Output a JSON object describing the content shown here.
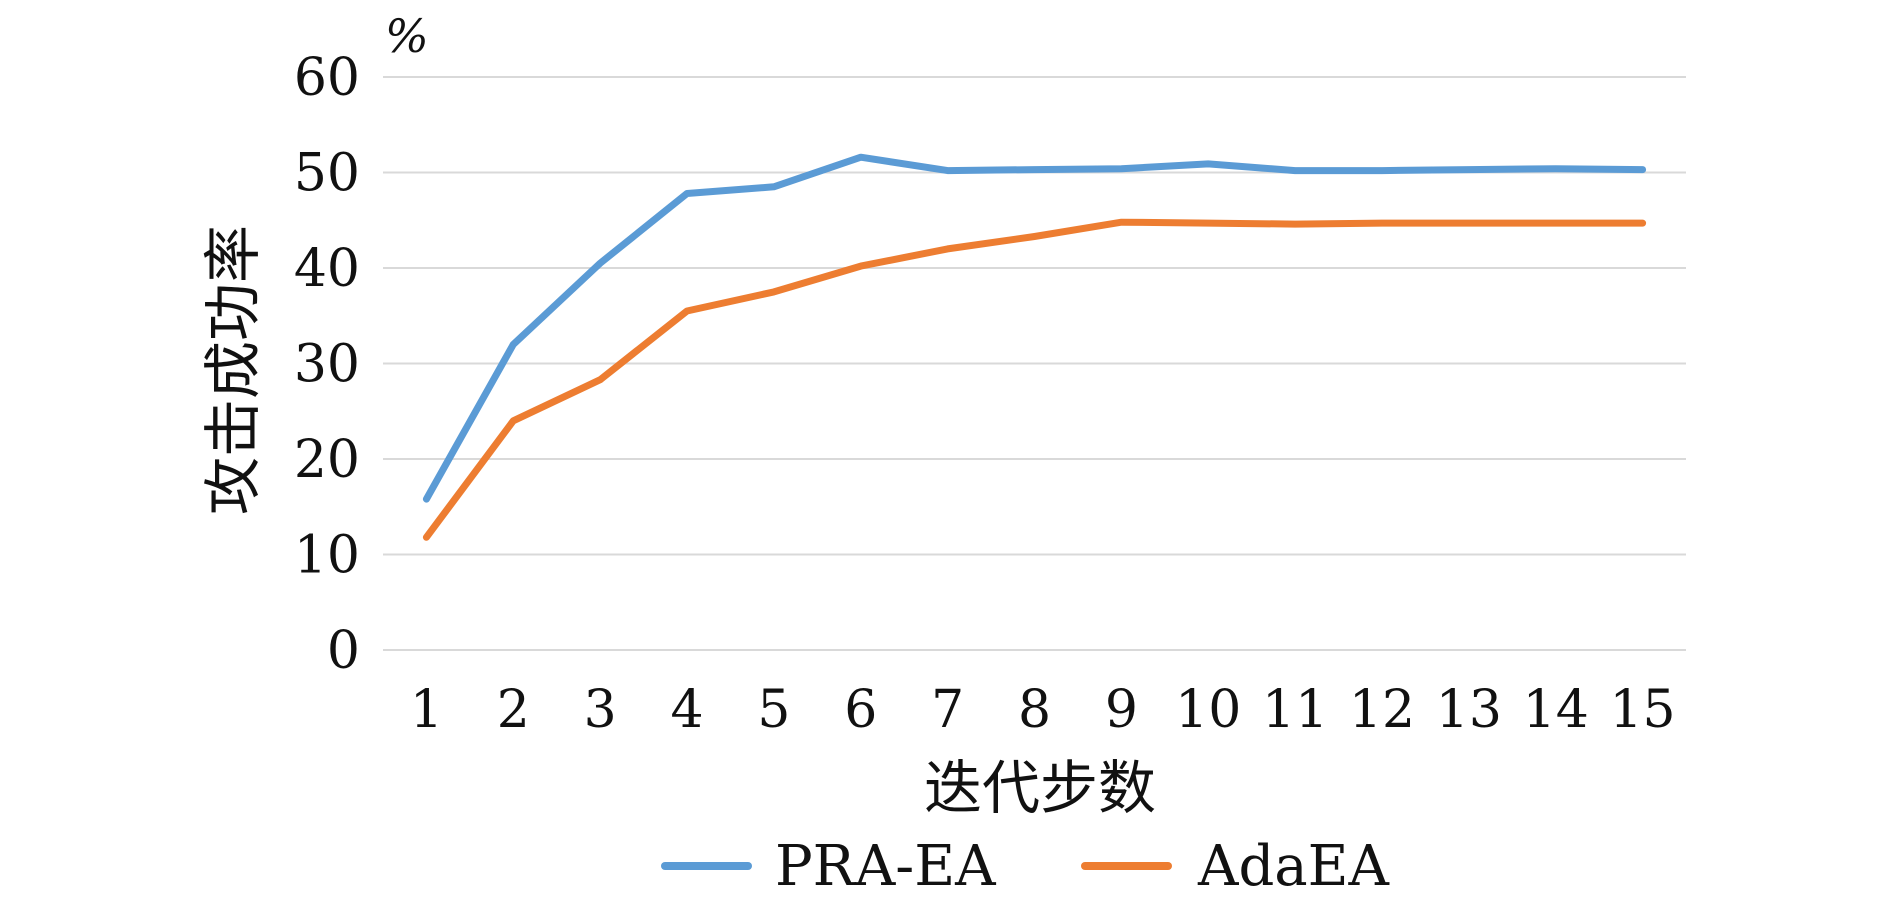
{
  "chart_data": {
    "type": "line",
    "title": "",
    "xlabel": "迭代步数",
    "ylabel": "攻击成功率",
    "yunit": "%",
    "ylim": [
      0,
      60
    ],
    "yticks": [
      "0",
      "10",
      "20",
      "30",
      "40",
      "50",
      "60"
    ],
    "categories": [
      "1",
      "2",
      "3",
      "4",
      "5",
      "6",
      "7",
      "8",
      "9",
      "10",
      "11",
      "12",
      "13",
      "14",
      "15"
    ],
    "grid": true,
    "legend_position": "bottom",
    "series": [
      {
        "name": "PRA-EA",
        "color": "#5b9bd5",
        "values": [
          15.8,
          32.0,
          40.5,
          47.8,
          48.5,
          51.6,
          50.2,
          50.3,
          50.4,
          50.9,
          50.2,
          50.2,
          50.3,
          50.4,
          50.3
        ]
      },
      {
        "name": "AdaEA",
        "color": "#ed7d31",
        "values": [
          11.8,
          24.0,
          28.3,
          35.5,
          37.5,
          40.2,
          42.0,
          43.3,
          44.8,
          44.7,
          44.6,
          44.7,
          44.7,
          44.7,
          44.7
        ]
      }
    ]
  }
}
